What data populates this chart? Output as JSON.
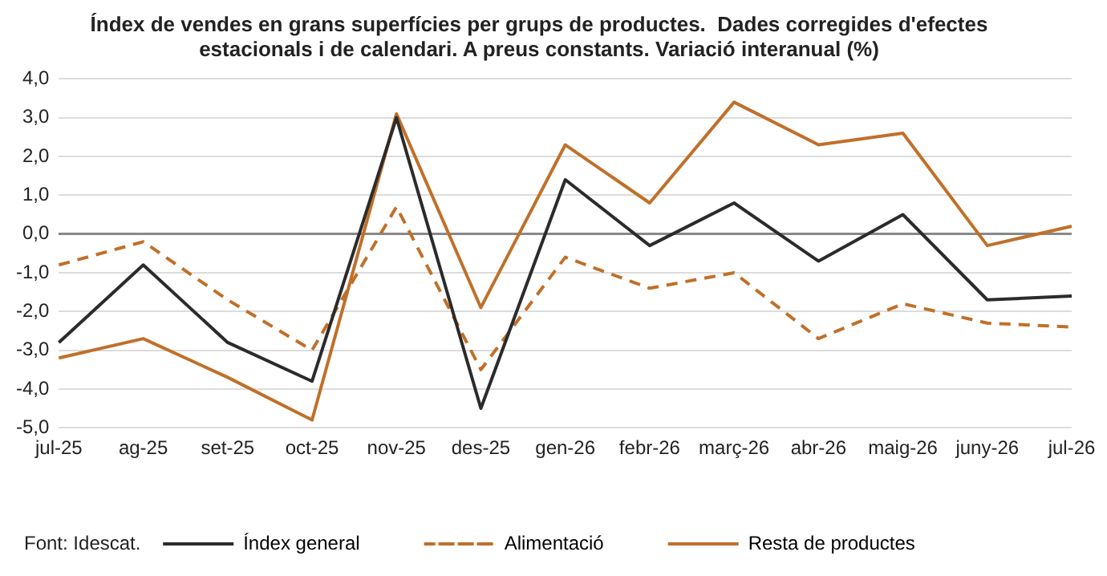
{
  "chart_data": {
    "type": "line",
    "title": "Índex de vendes en grans superfícies per grups de productes.  Dades corregides d'efectes estacionals i de calendari. A preus constants. Variació interanual (%)",
    "categories": [
      "jul-25",
      "ag-25",
      "set-25",
      "oct-25",
      "nov-25",
      "des-25",
      "gen-26",
      "febr-26",
      "març-26",
      "abr-26",
      "maig-26",
      "juny-26",
      "jul-26"
    ],
    "series": [
      {
        "name": "Índex general",
        "color": "#2b2b2b",
        "line_style": "solid",
        "values": [
          -2.8,
          -0.8,
          -2.8,
          -3.8,
          3.0,
          -4.5,
          1.4,
          -0.3,
          0.8,
          -0.7,
          0.5,
          -1.7,
          -1.6
        ]
      },
      {
        "name": "Alimentació",
        "color": "#c0702a",
        "line_style": "dashed",
        "values": [
          -0.8,
          -0.2,
          -1.7,
          -3.0,
          0.7,
          -3.5,
          -0.6,
          -1.4,
          -1.0,
          -2.7,
          -1.8,
          -2.3,
          -2.4
        ]
      },
      {
        "name": "Resta de productes",
        "color": "#c0702a",
        "line_style": "solid",
        "values": [
          -3.2,
          -2.7,
          -3.7,
          -4.8,
          3.1,
          -1.9,
          2.3,
          0.8,
          3.4,
          2.3,
          2.6,
          -0.3,
          0.2
        ]
      }
    ],
    "ylim": [
      -5,
      4
    ],
    "yticks": [
      {
        "value": -5,
        "label": "-5,0"
      },
      {
        "value": -4,
        "label": "-4,0"
      },
      {
        "value": -3,
        "label": "-3,0"
      },
      {
        "value": -2,
        "label": "-2,0"
      },
      {
        "value": -1,
        "label": "-1,0"
      },
      {
        "value": 0,
        "label": "0,0"
      },
      {
        "value": 1,
        "label": "1,0"
      },
      {
        "value": 2,
        "label": "2,0"
      },
      {
        "value": 3,
        "label": "3,0"
      },
      {
        "value": 4,
        "label": "4,0"
      }
    ],
    "grid": "y",
    "legend": "bottom",
    "marker": "none",
    "annotations": [
      "Font: Idescat."
    ]
  }
}
